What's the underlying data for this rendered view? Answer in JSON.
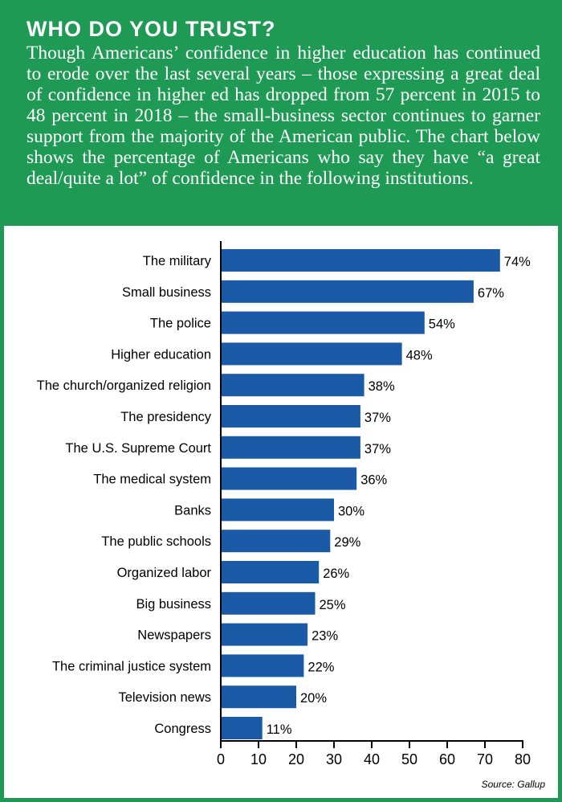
{
  "header": {
    "title": "WHO DO YOU TRUST?",
    "intro": "Though Americans’ confidence in higher education has continued to erode over the last several years – those expressing a great deal of confidence in higher ed has dropped from 57 percent in 2015 to 48 percent in 2018 – the small-business sector continues to garner support from the majority of the American public. The chart below shows the percentage of Americans who say they have “a great deal/quite a lot” of confidence in the following institutions."
  },
  "colors": {
    "green": "#1e9a54",
    "bar": "#1a5aa6"
  },
  "chart_data": {
    "type": "bar",
    "orientation": "horizontal",
    "categories": [
      "The military",
      "Small business",
      "The police",
      "Higher education",
      "The church/organized religion",
      "The presidency",
      "The U.S. Supreme Court",
      "The medical system",
      "Banks",
      "The public schools",
      "Organized labor",
      "Big business",
      "Newspapers",
      "The criminal justice system",
      "Television news",
      "Congress"
    ],
    "values": [
      74,
      67,
      54,
      48,
      38,
      37,
      37,
      36,
      30,
      29,
      26,
      25,
      23,
      22,
      20,
      11
    ],
    "value_labels": [
      "74%",
      "67%",
      "54%",
      "48%",
      "38%",
      "37%",
      "37%",
      "36%",
      "30%",
      "29%",
      "26%",
      "25%",
      "23%",
      "22%",
      "20%",
      "11%"
    ],
    "xlim": [
      0,
      80
    ],
    "xticks": [
      0,
      10,
      20,
      30,
      40,
      50,
      60,
      70,
      80
    ],
    "grid": false,
    "legend": "none",
    "source": "Source:  Gallup"
  }
}
